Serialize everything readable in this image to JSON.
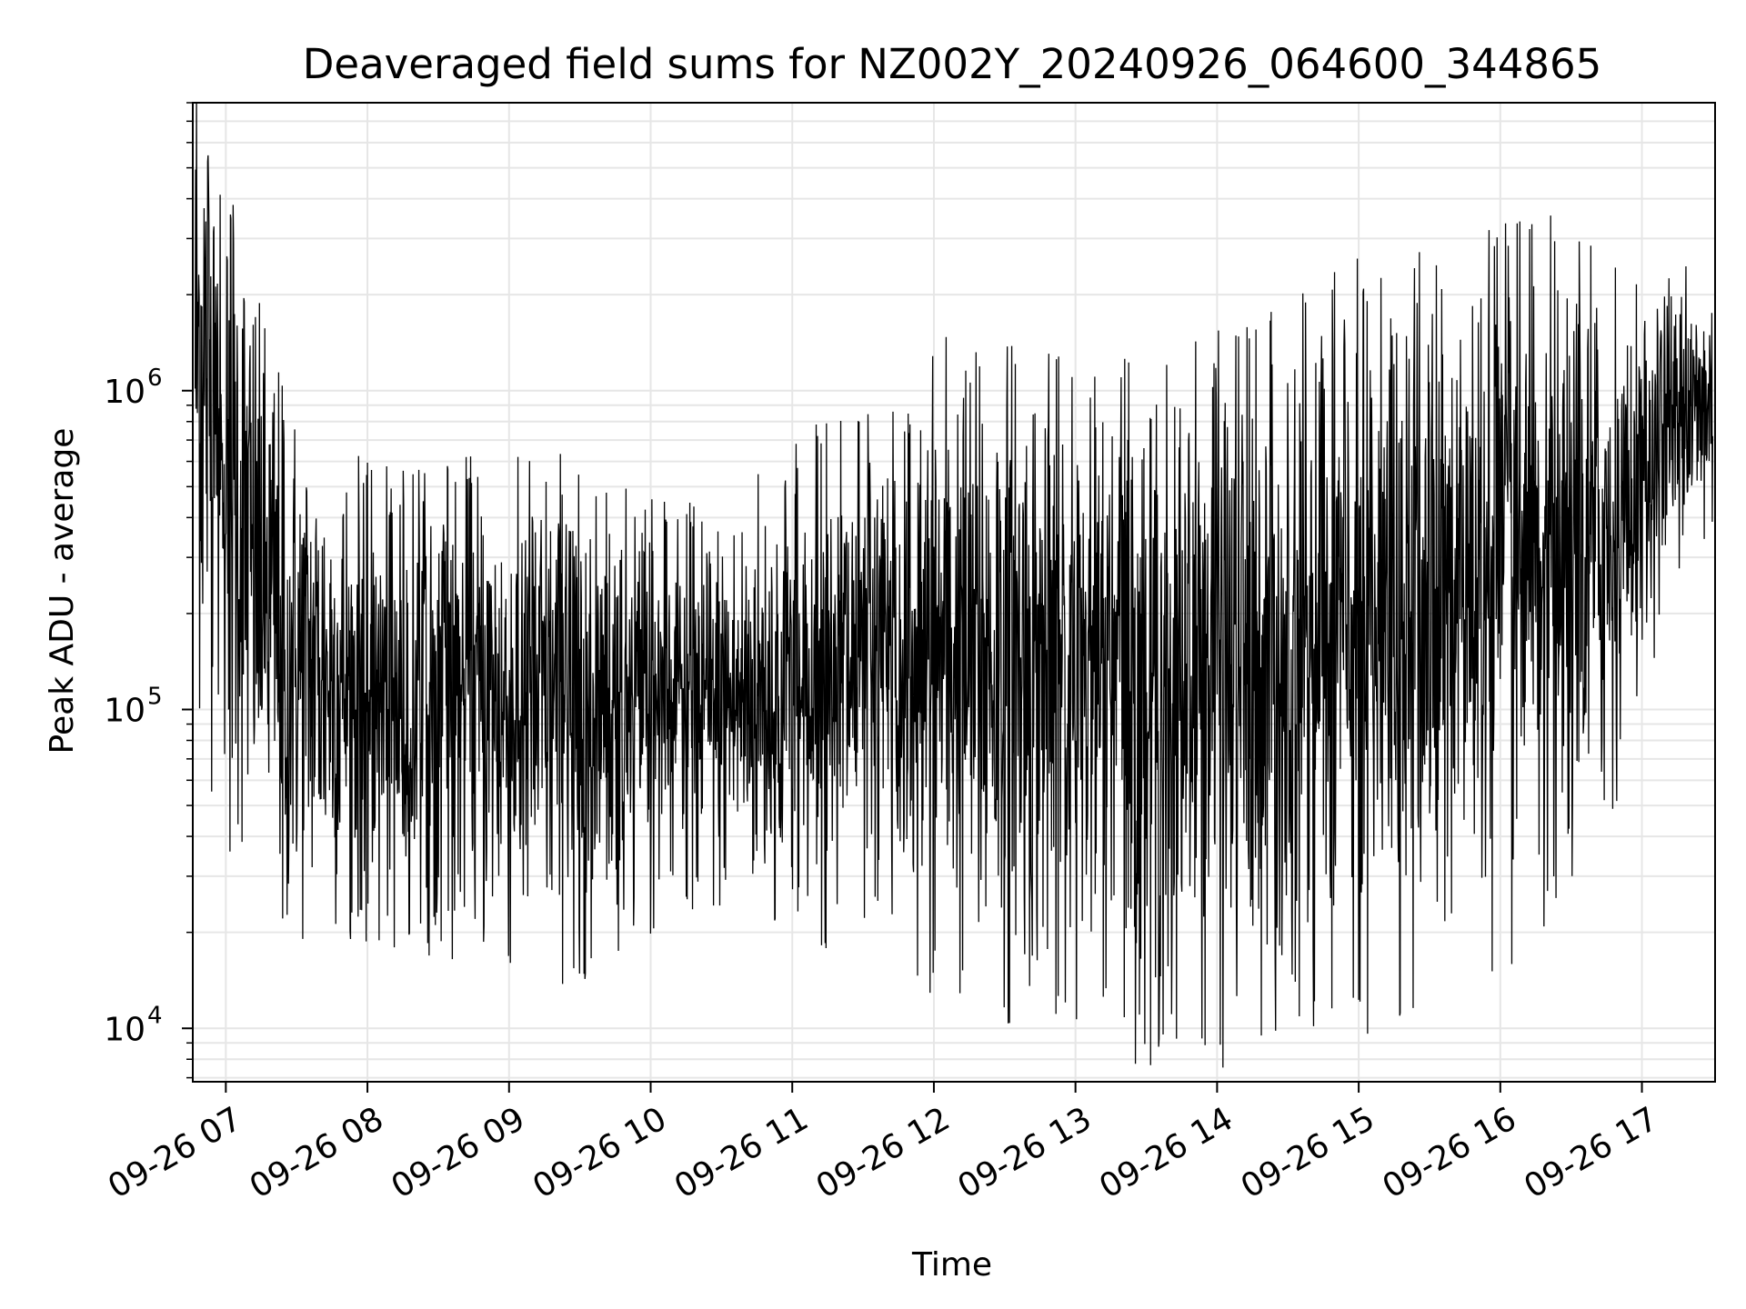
{
  "chart_data": {
    "type": "line",
    "title": "Deaveraged field sums for NZ002Y_20240926_064600_344865",
    "xlabel": "Time",
    "ylabel": "Peak ADU - average",
    "yscale": "log",
    "xlim": [
      "2024-09-26 06:46",
      "2024-09-26 17:31"
    ],
    "ylim": [
      6800,
      8000000
    ],
    "x_tick_labels": [
      "09-26 07",
      "09-26 08",
      "09-26 09",
      "09-26 10",
      "09-26 11",
      "09-26 12",
      "09-26 13",
      "09-26 14",
      "09-26 15",
      "09-26 16",
      "09-26 17"
    ],
    "x_tick_times": [
      "2024-09-26 07:00",
      "2024-09-26 08:00",
      "2024-09-26 09:00",
      "2024-09-26 10:00",
      "2024-09-26 11:00",
      "2024-09-26 12:00",
      "2024-09-26 13:00",
      "2024-09-26 14:00",
      "2024-09-26 15:00",
      "2024-09-26 16:00",
      "2024-09-26 17:00"
    ],
    "y_ticks": [
      {
        "value": 10000,
        "base": "10",
        "exp": "4"
      },
      {
        "value": 100000,
        "base": "10",
        "exp": "5"
      },
      {
        "value": 1000000,
        "base": "10",
        "exp": "6"
      }
    ],
    "grid": true,
    "line_color": "#000000",
    "grid_color": "#e6e6e6",
    "envelope": [
      {
        "time": "2024-09-26 06:47",
        "center": 1500000,
        "spread": 1.3
      },
      {
        "time": "2024-09-26 07:00",
        "center": 700000,
        "spread": 1.3
      },
      {
        "time": "2024-09-26 07:10",
        "center": 300000,
        "spread": 1.1
      },
      {
        "time": "2024-09-26 07:20",
        "center": 200000,
        "spread": 1.0
      },
      {
        "time": "2024-09-26 07:30",
        "center": 140000,
        "spread": 0.9
      },
      {
        "time": "2024-09-26 08:00",
        "center": 115000,
        "spread": 0.8
      },
      {
        "time": "2024-09-26 08:30",
        "center": 105000,
        "spread": 0.85
      },
      {
        "time": "2024-09-26 09:00",
        "center": 100000,
        "spread": 0.9
      },
      {
        "time": "2024-09-26 09:30",
        "center": 100000,
        "spread": 0.9
      },
      {
        "time": "2024-09-26 10:00",
        "center": 105000,
        "spread": 0.75
      },
      {
        "time": "2024-09-26 10:30",
        "center": 100000,
        "spread": 0.7
      },
      {
        "time": "2024-09-26 11:00",
        "center": 120000,
        "spread": 0.85
      },
      {
        "time": "2024-09-26 11:30",
        "center": 140000,
        "spread": 0.95
      },
      {
        "time": "2024-09-26 12:00",
        "center": 150000,
        "spread": 1.1
      },
      {
        "time": "2024-09-26 12:30",
        "center": 140000,
        "spread": 1.15
      },
      {
        "time": "2024-09-26 13:00",
        "center": 130000,
        "spread": 1.1
      },
      {
        "time": "2024-09-26 13:30",
        "center": 110000,
        "spread": 1.2
      },
      {
        "time": "2024-09-26 14:00",
        "center": 130000,
        "spread": 1.25
      },
      {
        "time": "2024-09-26 14:30",
        "center": 160000,
        "spread": 1.2
      },
      {
        "time": "2024-09-26 15:00",
        "center": 180000,
        "spread": 1.3
      },
      {
        "time": "2024-09-26 15:30",
        "center": 210000,
        "spread": 1.3
      },
      {
        "time": "2024-09-26 16:00",
        "center": 260000,
        "spread": 1.25
      },
      {
        "time": "2024-09-26 16:30",
        "center": 300000,
        "spread": 1.2
      },
      {
        "time": "2024-09-26 16:45",
        "center": 330000,
        "spread": 1.0
      },
      {
        "time": "2024-09-26 17:00",
        "center": 500000,
        "spread": 0.7
      },
      {
        "time": "2024-09-26 17:15",
        "center": 800000,
        "spread": 0.55
      },
      {
        "time": "2024-09-26 17:30",
        "center": 900000,
        "spread": 0.5
      }
    ]
  }
}
